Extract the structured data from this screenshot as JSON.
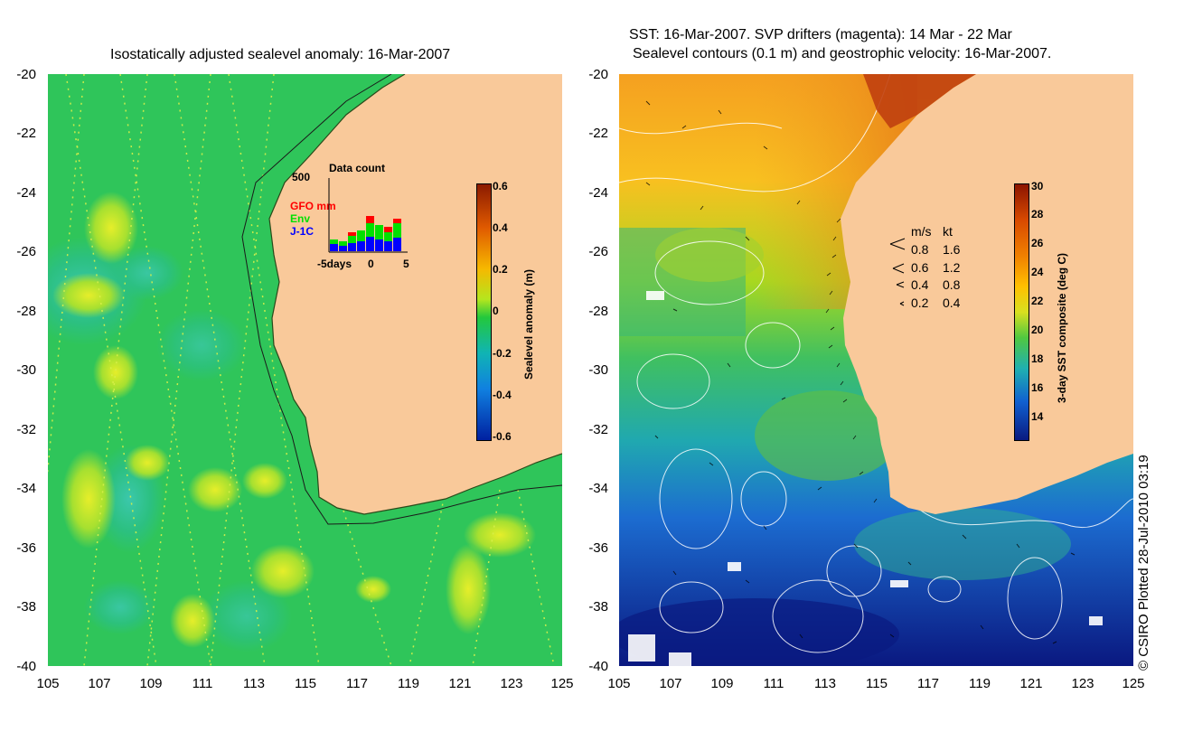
{
  "left_panel": {
    "title": "Isostatically adjusted sealevel anomaly: 16-Mar-2007",
    "colorbar": {
      "label": "Sealevel anomaly (m)",
      "ticks": [
        "0.6",
        "0.4",
        "0.2",
        "0",
        "-0.2",
        "-0.4",
        "-0.6"
      ],
      "colors": [
        "#8b1a00",
        "#e05a00",
        "#f6b800",
        "#b4e61e",
        "#23c83c",
        "#10b4b4",
        "#1080e0",
        "#0020a0"
      ]
    },
    "inset": {
      "title": "Data count",
      "ymax_label": "500",
      "legend": [
        {
          "name": "GFO mm",
          "color": "#ff0000"
        },
        {
          "name": "Env",
          "color": "#00e000"
        },
        {
          "name": "J-1C",
          "color": "#0000ff"
        }
      ],
      "xlabels": {
        "left": "-5days",
        "mid": "0",
        "right": "5"
      }
    }
  },
  "right_panel": {
    "title_line1": "SST: 16-Mar-2007. SVP drifters (magenta): 14 Mar - 22 Mar",
    "title_line2": "Sealevel contours (0.1 m) and geostrophic velocity: 16-Mar-2007.",
    "colorbar": {
      "label": "3-day SST composite (deg C)",
      "ticks": [
        "30",
        "28",
        "26",
        "24",
        "22",
        "20",
        "18",
        "16",
        "14"
      ],
      "colors": [
        "#8b1400",
        "#d84a00",
        "#f08000",
        "#ffc000",
        "#d8e020",
        "#50c840",
        "#20b0b0",
        "#1060d0",
        "#0a1a80"
      ]
    },
    "velocity_legend": {
      "header": [
        "m/s",
        "kt"
      ],
      "rows": [
        [
          "0.8",
          "1.6"
        ],
        [
          "0.6",
          "1.2"
        ],
        [
          "0.4",
          "0.8"
        ],
        [
          "0.2",
          "0.4"
        ]
      ]
    }
  },
  "axes": {
    "lat_ticks": [
      "-20",
      "-22",
      "-24",
      "-26",
      "-28",
      "-30",
      "-32",
      "-34",
      "-36",
      "-38",
      "-40"
    ],
    "lon_ticks": [
      "105",
      "107",
      "109",
      "111",
      "113",
      "115",
      "117",
      "119",
      "121",
      "123",
      "125"
    ]
  },
  "credit": "© CSIRO Plotted 28-Jul-2010 03:19",
  "colors": {
    "land": "#f9c99a",
    "ocean_green": "#34c85a",
    "sst_warm": "#f5a020",
    "sst_cold": "#1040c0"
  }
}
